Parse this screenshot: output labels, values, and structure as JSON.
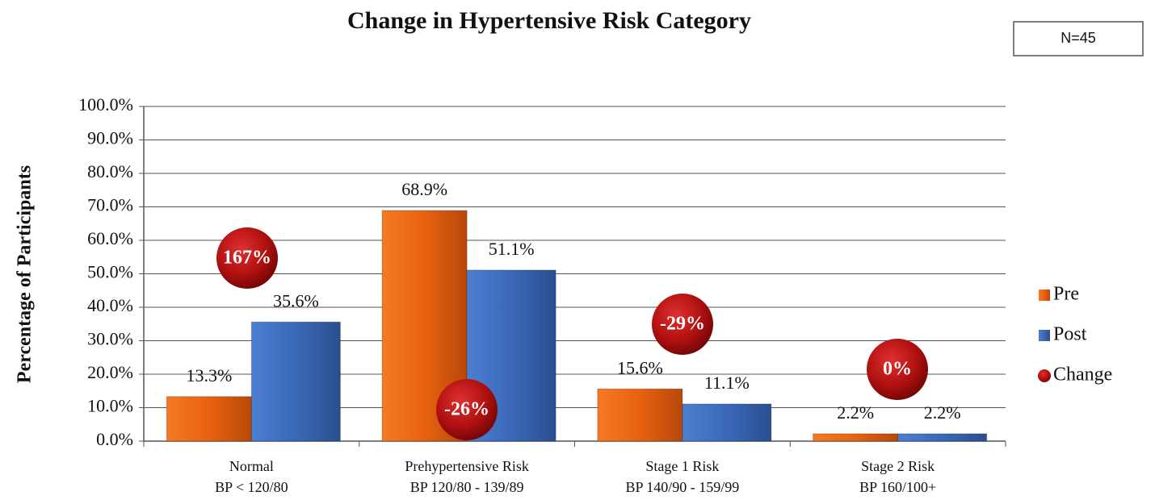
{
  "chart_data": {
    "type": "bar",
    "title": "Change in Hypertensive Risk Category",
    "note": "N=45",
    "y_label": "Percentage of Participants",
    "categories": [
      "Normal",
      "Prehypertensive Risk",
      "Stage 1 Risk",
      "Stage 2 Risk"
    ],
    "category_details": [
      "BP < 120/80",
      "BP 120/80 - 139/89",
      "BP 140/90 - 159/99",
      "BP 160/100+"
    ],
    "series": [
      {
        "name": "Pre",
        "color": "#e8620f",
        "values": [
          13.3,
          68.9,
          15.6,
          2.2
        ],
        "value_labels": [
          "13.3%",
          "68.9%",
          "15.6%",
          "2.2%"
        ]
      },
      {
        "name": "Post",
        "color": "#3a68b8",
        "values": [
          35.6,
          51.1,
          11.1,
          2.2
        ],
        "value_labels": [
          "35.6%",
          "51.1%",
          "11.1%",
          "2.2%"
        ]
      }
    ],
    "change": {
      "name": "Change",
      "color": "#b01010",
      "values": [
        167,
        -26,
        -29,
        0
      ],
      "value_labels": [
        "167%",
        "-26%",
        "-29%",
        "0%"
      ]
    },
    "ylim": [
      0,
      100
    ],
    "yticks": [
      {
        "value": 0,
        "label": "0.0%"
      },
      {
        "value": 10,
        "label": "10.0%"
      },
      {
        "value": 20,
        "label": "20.0%"
      },
      {
        "value": 30,
        "label": "30.0%"
      },
      {
        "value": 40,
        "label": "40.0%"
      },
      {
        "value": 50,
        "label": "50.0%"
      },
      {
        "value": 60,
        "label": "60.0%"
      },
      {
        "value": 70,
        "label": "70.0%"
      },
      {
        "value": 80,
        "label": "80.0%"
      },
      {
        "value": 90,
        "label": "90.0%"
      },
      {
        "value": 100,
        "label": "100.0%"
      }
    ],
    "grid": true
  }
}
